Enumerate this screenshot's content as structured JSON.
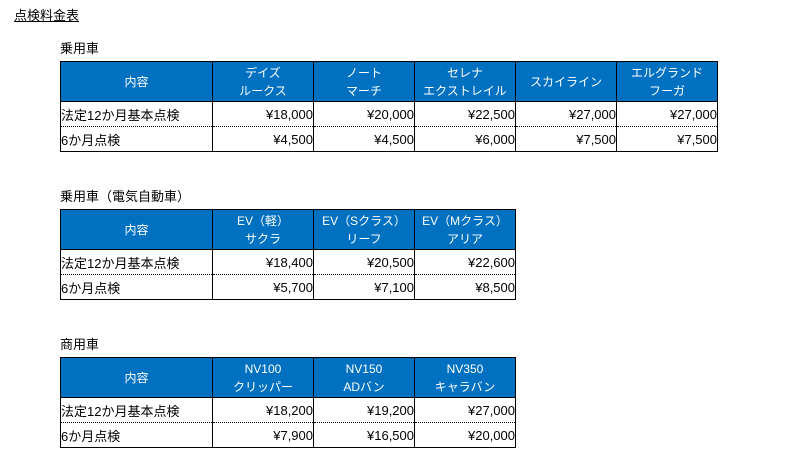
{
  "page": {
    "title": "点検料金表"
  },
  "colors": {
    "header_bg": "#0070C0",
    "header_text": "#ffffff",
    "border": "#000000",
    "page_bg": "#ffffff"
  },
  "tables": [
    {
      "section_label": "乗用車",
      "content_header": "内容",
      "columns": [
        {
          "lines": [
            "デイズ",
            "ルークス"
          ]
        },
        {
          "lines": [
            "ノート",
            "マーチ"
          ]
        },
        {
          "lines": [
            "セレナ",
            "エクストレイル"
          ]
        },
        {
          "lines": [
            "スカイライン"
          ]
        },
        {
          "lines": [
            "エルグランド",
            "フーガ"
          ]
        }
      ],
      "rows": [
        {
          "label": "法定12か月基本点検",
          "values": [
            "¥18,000",
            "¥20,000",
            "¥22,500",
            "¥27,000",
            "¥27,000"
          ]
        },
        {
          "label": "6か月点検",
          "values": [
            "¥4,500",
            "¥4,500",
            "¥6,000",
            "¥7,500",
            "¥7,500"
          ]
        }
      ]
    },
    {
      "section_label": "乗用車（電気自動車）",
      "content_header": "内容",
      "columns": [
        {
          "lines": [
            "EV（軽）",
            "サクラ"
          ]
        },
        {
          "lines": [
            "EV（Sクラス）",
            "リーフ"
          ]
        },
        {
          "lines": [
            "EV（Mクラス）",
            "アリア"
          ]
        }
      ],
      "rows": [
        {
          "label": "法定12か月基本点検",
          "values": [
            "¥18,400",
            "¥20,500",
            "¥22,600"
          ]
        },
        {
          "label": "6か月点検",
          "values": [
            "¥5,700",
            "¥7,100",
            "¥8,500"
          ]
        }
      ]
    },
    {
      "section_label": "商用車",
      "content_header": "内容",
      "columns": [
        {
          "lines": [
            "NV100",
            "クリッパー"
          ]
        },
        {
          "lines": [
            "NV150",
            "ADバン"
          ]
        },
        {
          "lines": [
            "NV350",
            "キャラバン"
          ]
        }
      ],
      "rows": [
        {
          "label": "法定12か月基本点検",
          "values": [
            "¥18,200",
            "¥19,200",
            "¥27,000"
          ]
        },
        {
          "label": "6か月点検",
          "values": [
            "¥7,900",
            "¥16,500",
            "¥20,000"
          ]
        }
      ]
    }
  ]
}
